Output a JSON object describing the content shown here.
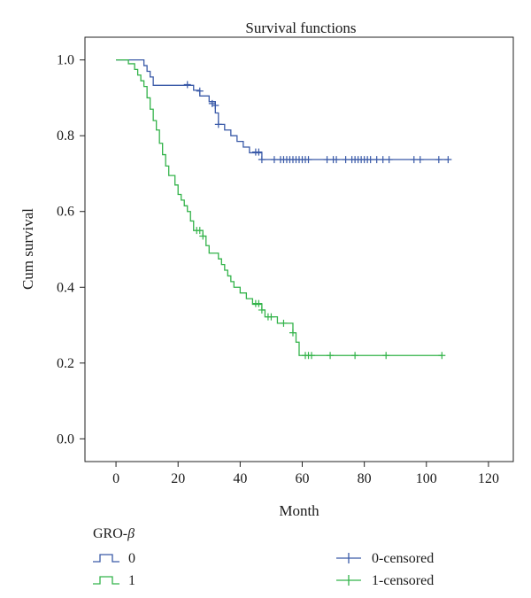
{
  "chart_data": {
    "type": "line",
    "subtype": "kaplan-meier-step",
    "title": "Survival functions",
    "xlabel": "Month",
    "ylabel": "Cum survival",
    "xlim": [
      -10,
      128
    ],
    "ylim": [
      -0.06,
      1.06
    ],
    "xticks": [
      0,
      20,
      40,
      60,
      80,
      100,
      120
    ],
    "yticks": [
      0.0,
      0.2,
      0.4,
      0.6,
      0.8,
      1.0
    ],
    "xtick_labels": [
      "0",
      "20",
      "40",
      "60",
      "80",
      "100",
      "120"
    ],
    "ytick_labels": [
      "0.0",
      "0.2",
      "0.4",
      "0.6",
      "0.8",
      "1.0"
    ],
    "grid": false,
    "legend": {
      "title_text": "GRO-",
      "title_symbol": "β",
      "placement": "bottom",
      "entries": [
        {
          "label": "0",
          "series": 0,
          "kind": "line"
        },
        {
          "label": "1",
          "series": 1,
          "kind": "line"
        },
        {
          "label": "0-censored",
          "series": 0,
          "kind": "censor"
        },
        {
          "label": "1-censored",
          "series": 1,
          "kind": "censor"
        }
      ]
    },
    "series": [
      {
        "name": "0",
        "color": "#3a5aa8",
        "steps": [
          [
            0,
            1.0
          ],
          [
            9,
            0.985
          ],
          [
            10,
            0.97
          ],
          [
            11,
            0.955
          ],
          [
            12,
            0.933
          ],
          [
            25,
            0.92
          ],
          [
            27,
            0.905
          ],
          [
            30,
            0.89
          ],
          [
            32,
            0.86
          ],
          [
            33,
            0.83
          ],
          [
            35,
            0.815
          ],
          [
            37,
            0.8
          ],
          [
            39,
            0.785
          ],
          [
            41,
            0.77
          ],
          [
            43,
            0.755
          ],
          [
            47,
            0.737
          ],
          [
            107,
            0.737
          ]
        ],
        "censored": [
          [
            23,
            0.935
          ],
          [
            27,
            0.918
          ],
          [
            31,
            0.885
          ],
          [
            32,
            0.88
          ],
          [
            33,
            0.83
          ],
          [
            45,
            0.757
          ],
          [
            46,
            0.757
          ],
          [
            47,
            0.737
          ],
          [
            51,
            0.737
          ],
          [
            53,
            0.737
          ],
          [
            54,
            0.737
          ],
          [
            55,
            0.737
          ],
          [
            56,
            0.737
          ],
          [
            57,
            0.737
          ],
          [
            58,
            0.737
          ],
          [
            59,
            0.737
          ],
          [
            60,
            0.737
          ],
          [
            61,
            0.737
          ],
          [
            62,
            0.737
          ],
          [
            68,
            0.737
          ],
          [
            70,
            0.737
          ],
          [
            71,
            0.737
          ],
          [
            74,
            0.737
          ],
          [
            76,
            0.737
          ],
          [
            77,
            0.737
          ],
          [
            78,
            0.737
          ],
          [
            79,
            0.737
          ],
          [
            80,
            0.737
          ],
          [
            81,
            0.737
          ],
          [
            82,
            0.737
          ],
          [
            84,
            0.737
          ],
          [
            86,
            0.737
          ],
          [
            88,
            0.737
          ],
          [
            96,
            0.737
          ],
          [
            98,
            0.737
          ],
          [
            104,
            0.737
          ],
          [
            107,
            0.737
          ]
        ]
      },
      {
        "name": "1",
        "color": "#33b34a",
        "steps": [
          [
            0,
            1.0
          ],
          [
            4,
            0.99
          ],
          [
            6,
            0.975
          ],
          [
            7,
            0.96
          ],
          [
            8,
            0.945
          ],
          [
            9,
            0.93
          ],
          [
            10,
            0.9
          ],
          [
            11,
            0.87
          ],
          [
            12,
            0.84
          ],
          [
            13,
            0.815
          ],
          [
            14,
            0.78
          ],
          [
            15,
            0.75
          ],
          [
            16,
            0.72
          ],
          [
            17,
            0.695
          ],
          [
            19,
            0.67
          ],
          [
            20,
            0.645
          ],
          [
            21,
            0.63
          ],
          [
            22,
            0.615
          ],
          [
            23,
            0.6
          ],
          [
            24,
            0.575
          ],
          [
            25,
            0.55
          ],
          [
            28,
            0.535
          ],
          [
            29,
            0.51
          ],
          [
            30,
            0.49
          ],
          [
            33,
            0.475
          ],
          [
            34,
            0.46
          ],
          [
            35,
            0.445
          ],
          [
            36,
            0.43
          ],
          [
            37,
            0.415
          ],
          [
            38,
            0.4
          ],
          [
            40,
            0.385
          ],
          [
            42,
            0.37
          ],
          [
            44,
            0.355
          ],
          [
            47,
            0.34
          ],
          [
            48,
            0.322
          ],
          [
            52,
            0.305
          ],
          [
            57,
            0.28
          ],
          [
            58,
            0.255
          ],
          [
            59,
            0.22
          ],
          [
            105,
            0.22
          ]
        ],
        "censored": [
          [
            26,
            0.55
          ],
          [
            27,
            0.55
          ],
          [
            28,
            0.535
          ],
          [
            45,
            0.357
          ],
          [
            46,
            0.357
          ],
          [
            47,
            0.34
          ],
          [
            49,
            0.322
          ],
          [
            50,
            0.322
          ],
          [
            54,
            0.305
          ],
          [
            57,
            0.28
          ],
          [
            61,
            0.22
          ],
          [
            62,
            0.22
          ],
          [
            63,
            0.22
          ],
          [
            69,
            0.22
          ],
          [
            77,
            0.22
          ],
          [
            87,
            0.22
          ],
          [
            105,
            0.22
          ]
        ]
      }
    ]
  }
}
